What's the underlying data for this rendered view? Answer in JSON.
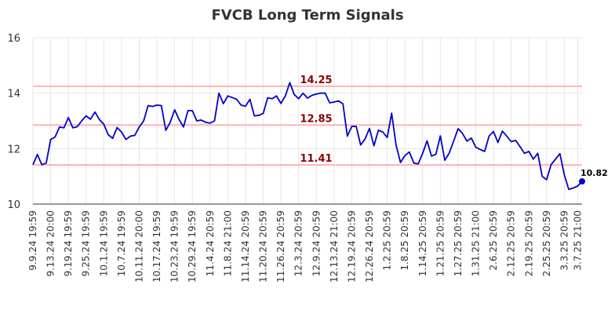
{
  "chart_data": {
    "type": "line",
    "title": "FVCB Long Term Signals",
    "xlabel": "",
    "ylabel": "",
    "ylim": [
      10,
      16
    ],
    "yticks": [
      10,
      12,
      14,
      16
    ],
    "grid": true,
    "line_color": "#0000cc",
    "hline_color": "#ffb3b3",
    "hline_label_color": "#8b0000",
    "hlines": [
      {
        "value": 14.25,
        "label": "14.25"
      },
      {
        "value": 12.85,
        "label": "12.85"
      },
      {
        "value": 11.41,
        "label": "11.41"
      }
    ],
    "last_label": "10.82",
    "xtick_labels": [
      "9.9.24 19:59",
      "9.13.24 20:00",
      "9.19.24 19:59",
      "9.25.24 19:59",
      "10.1.24 19:59",
      "10.7.24 19:59",
      "10.11.24 20:00",
      "10.17.24 19:59",
      "10.23.24 19:59",
      "10.29.24 19:59",
      "11.4.24 20:59",
      "11.8.24 21:00",
      "11.14.24 20:59",
      "11.20.24 20:59",
      "11.26.24 20:59",
      "12.3.24 20:59",
      "12.9.24 20:59",
      "12.13.24 21:00",
      "12.19.24 20:59",
      "12.26.24 20:59",
      "1.2.25 20:59",
      "1.8.25 20:59",
      "1.14.25 20:59",
      "1.21.25 20:59",
      "1.27.25 20:59",
      "1.31.25 21:00",
      "2.6.25 20:59",
      "2.12.25 20:59",
      "2.19.25 20:59",
      "2.25.25 20:59",
      "3.3.25 20:59",
      "3.7.25 21:00"
    ],
    "xtick_index": [
      0,
      4,
      8,
      12,
      16,
      20,
      24,
      28,
      32,
      36,
      40,
      44,
      48,
      52,
      56,
      60,
      64,
      68,
      72,
      76,
      80,
      84,
      88,
      92,
      96,
      100,
      104,
      108,
      112,
      116,
      120,
      123
    ],
    "series": [
      {
        "values": [
          11.42,
          11.79,
          11.42,
          11.48,
          12.33,
          12.42,
          12.78,
          12.75,
          13.12,
          12.75,
          12.79,
          13.0,
          13.18,
          13.06,
          13.32,
          13.05,
          12.88,
          12.5,
          12.37,
          12.76,
          12.6,
          12.33,
          12.45,
          12.48,
          12.78,
          13.0,
          13.55,
          13.52,
          13.57,
          13.55,
          12.66,
          12.95,
          13.4,
          13.05,
          12.78,
          13.37,
          13.37,
          13.0,
          13.03,
          12.95,
          12.92,
          13.0,
          14.0,
          13.62,
          13.9,
          13.84,
          13.78,
          13.57,
          13.53,
          13.78,
          13.18,
          13.2,
          13.27,
          13.83,
          13.8,
          13.9,
          13.63,
          13.9,
          14.38,
          13.95,
          13.8,
          14.0,
          13.82,
          13.92,
          13.97,
          14.0,
          14.0,
          13.65,
          13.68,
          13.72,
          13.62,
          12.45,
          12.8,
          12.8,
          12.13,
          12.35,
          12.73,
          12.1,
          12.66,
          12.6,
          12.4,
          13.28,
          12.13,
          11.5,
          11.75,
          11.88,
          11.48,
          11.45,
          11.83,
          12.28,
          11.73,
          11.8,
          12.46,
          11.58,
          11.84,
          12.27,
          12.72,
          12.55,
          12.27,
          12.38,
          12.05,
          11.97,
          11.9,
          12.45,
          12.62,
          12.22,
          12.63,
          12.45,
          12.25,
          12.3,
          12.07,
          11.83,
          11.9,
          11.62,
          11.83,
          11.0,
          10.88,
          11.42,
          11.62,
          11.82,
          11.05,
          10.53,
          10.58,
          10.65,
          10.82
        ]
      }
    ]
  }
}
